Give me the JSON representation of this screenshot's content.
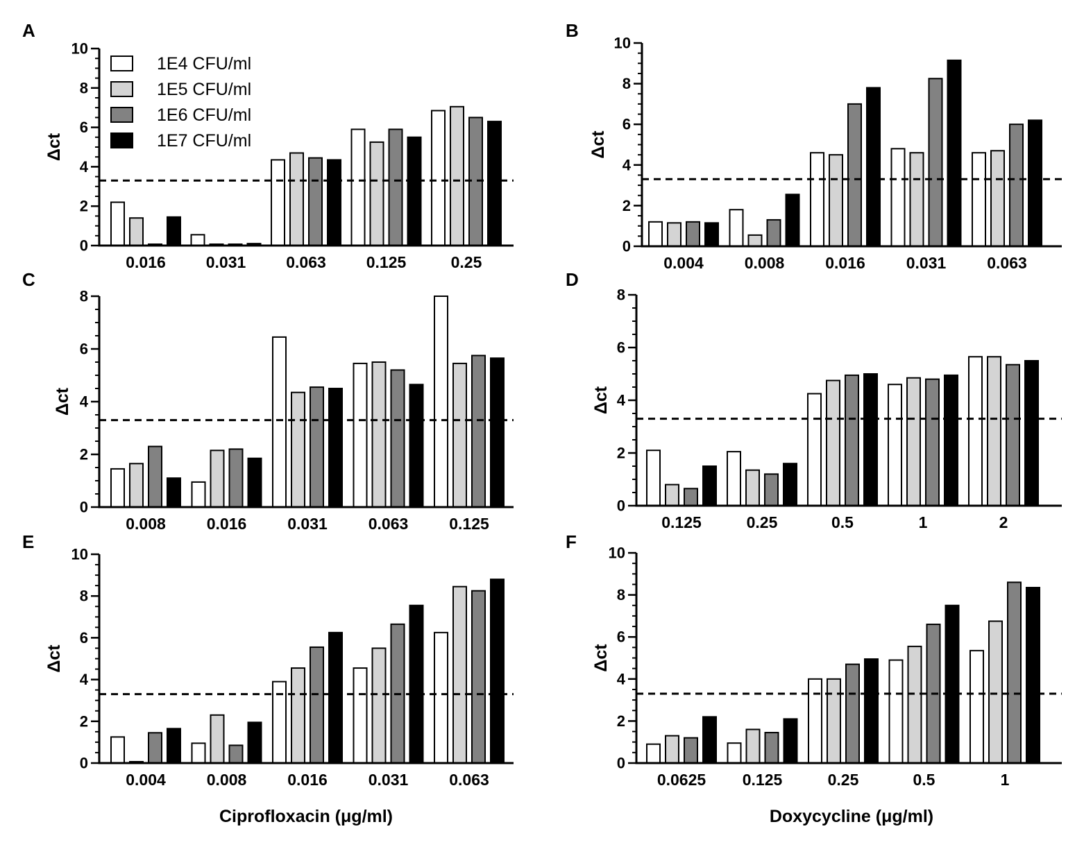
{
  "figure": {
    "x_titles": [
      "Ciprofloxacin (μg/ml)",
      "Doxycycline  (μg/ml)"
    ],
    "threshold": 3.3
  },
  "legend": [
    {
      "label": "1E4 CFU/ml",
      "color": "#ffffff"
    },
    {
      "label": "1E5 CFU/ml",
      "color": "#d4d4d4"
    },
    {
      "label": "1E6 CFU/ml",
      "color": "#828282"
    },
    {
      "label": "1E7 CFU/ml",
      "color": "#000000"
    }
  ],
  "chart_data": [
    {
      "panel": "A",
      "type": "bar",
      "ylabel": "Δct",
      "ylim": [
        0,
        10
      ],
      "yticks": [
        0,
        2,
        4,
        6,
        8,
        10
      ],
      "categories": [
        "0.016",
        "0.031",
        "0.063",
        "0.125",
        "0.25"
      ],
      "series": [
        {
          "name": "1E4 CFU/ml",
          "values": [
            2.2,
            0.55,
            4.35,
            5.9,
            6.85
          ]
        },
        {
          "name": "1E5 CFU/ml",
          "values": [
            1.4,
            0.05,
            4.7,
            5.25,
            7.05
          ]
        },
        {
          "name": "1E6 CFU/ml",
          "values": [
            0.05,
            0.05,
            4.45,
            5.9,
            6.5
          ]
        },
        {
          "name": "1E7 CFU/ml",
          "values": [
            1.45,
            0.1,
            4.35,
            5.5,
            6.3
          ]
        }
      ],
      "threshold": 3.3
    },
    {
      "panel": "B",
      "type": "bar",
      "ylabel": "Δct",
      "ylim": [
        0,
        10
      ],
      "yticks": [
        0,
        2,
        4,
        6,
        8,
        10
      ],
      "categories": [
        "0.004",
        "0.008",
        "0.016",
        "0.031",
        "0.063"
      ],
      "series": [
        {
          "name": "1E4 CFU/ml",
          "values": [
            1.2,
            1.8,
            4.6,
            4.8,
            4.6
          ]
        },
        {
          "name": "1E5 CFU/ml",
          "values": [
            1.15,
            0.55,
            4.5,
            4.6,
            4.7
          ]
        },
        {
          "name": "1E6 CFU/ml",
          "values": [
            1.2,
            1.3,
            7.0,
            8.25,
            6.0
          ]
        },
        {
          "name": "1E7 CFU/ml",
          "values": [
            1.15,
            2.55,
            7.8,
            9.15,
            6.2
          ]
        }
      ],
      "threshold": 3.3
    },
    {
      "panel": "C",
      "type": "bar",
      "ylabel": "Δct",
      "ylim": [
        0,
        8
      ],
      "yticks": [
        0,
        2,
        4,
        6,
        8
      ],
      "categories": [
        "0.008",
        "0.016",
        "0.031",
        "0.063",
        "0.125"
      ],
      "series": [
        {
          "name": "1E4 CFU/ml",
          "values": [
            1.45,
            0.95,
            6.45,
            5.45,
            8.0
          ]
        },
        {
          "name": "1E5 CFU/ml",
          "values": [
            1.65,
            2.15,
            4.35,
            5.5,
            5.45
          ]
        },
        {
          "name": "1E6 CFU/ml",
          "values": [
            2.3,
            2.2,
            4.55,
            5.2,
            5.75
          ]
        },
        {
          "name": "1E7 CFU/ml",
          "values": [
            1.1,
            1.85,
            4.5,
            4.65,
            5.65
          ]
        }
      ],
      "threshold": 3.3
    },
    {
      "panel": "D",
      "type": "bar",
      "ylabel": "Δct",
      "ylim": [
        0,
        8
      ],
      "yticks": [
        0,
        2,
        4,
        6,
        8
      ],
      "categories": [
        "0.125",
        "0.25",
        "0.5",
        "1",
        "2"
      ],
      "series": [
        {
          "name": "1E4 CFU/ml",
          "values": [
            2.1,
            2.05,
            4.25,
            4.6,
            5.65
          ]
        },
        {
          "name": "1E5 CFU/ml",
          "values": [
            0.8,
            1.35,
            4.75,
            4.85,
            5.65
          ]
        },
        {
          "name": "1E6 CFU/ml",
          "values": [
            0.65,
            1.2,
            4.95,
            4.8,
            5.35
          ]
        },
        {
          "name": "1E7 CFU/ml",
          "values": [
            1.5,
            1.6,
            5.0,
            4.95,
            5.5
          ]
        }
      ],
      "threshold": 3.3
    },
    {
      "panel": "E",
      "type": "bar",
      "ylabel": "Δct",
      "ylim": [
        0,
        10
      ],
      "yticks": [
        0,
        2,
        4,
        6,
        8,
        10
      ],
      "categories": [
        "0.004",
        "0.008",
        "0.016",
        "0.031",
        "0.063"
      ],
      "series": [
        {
          "name": "1E4 CFU/ml",
          "values": [
            1.25,
            0.95,
            3.9,
            4.55,
            6.25
          ]
        },
        {
          "name": "1E5 CFU/ml",
          "values": [
            0.05,
            2.3,
            4.55,
            5.5,
            8.45
          ]
        },
        {
          "name": "1E6 CFU/ml",
          "values": [
            1.45,
            0.85,
            5.55,
            6.65,
            8.25
          ]
        },
        {
          "name": "1E7 CFU/ml",
          "values": [
            1.65,
            1.95,
            6.25,
            7.55,
            8.8
          ]
        }
      ],
      "threshold": 3.3
    },
    {
      "panel": "F",
      "type": "bar",
      "ylabel": "Δct",
      "ylim": [
        0,
        10
      ],
      "yticks": [
        0,
        2,
        4,
        6,
        8,
        10
      ],
      "categories": [
        "0.0625",
        "0.125",
        "0.25",
        "0.5",
        "1"
      ],
      "series": [
        {
          "name": "1E4 CFU/ml",
          "values": [
            0.9,
            0.95,
            4.0,
            4.9,
            5.35
          ]
        },
        {
          "name": "1E5 CFU/ml",
          "values": [
            1.3,
            1.6,
            4.0,
            5.55,
            6.75
          ]
        },
        {
          "name": "1E6 CFU/ml",
          "values": [
            1.2,
            1.45,
            4.7,
            6.6,
            8.6
          ]
        },
        {
          "name": "1E7 CFU/ml",
          "values": [
            2.2,
            2.1,
            4.95,
            7.5,
            8.35
          ]
        }
      ],
      "threshold": 3.3
    }
  ]
}
